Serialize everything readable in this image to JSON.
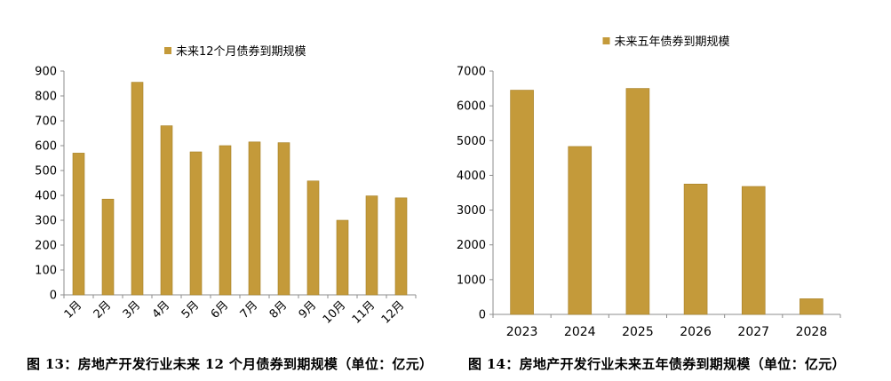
{
  "colors": {
    "bar": "#c49a3a",
    "bar_stroke": "#a67f24",
    "axis": "#8c8c8c"
  },
  "chart_data": [
    {
      "type": "bar",
      "legend": "未来12个月债券到期规模",
      "legend_position": "top",
      "categories": [
        "1月",
        "2月",
        "3月",
        "4月",
        "5月",
        "6月",
        "7月",
        "8月",
        "9月",
        "10月",
        "11月",
        "12月"
      ],
      "values": [
        570,
        385,
        855,
        680,
        575,
        600,
        615,
        612,
        458,
        300,
        398,
        390
      ],
      "ylim": [
        0,
        900
      ],
      "yticks": [
        "0",
        "100",
        "200",
        "300",
        "400",
        "500",
        "600",
        "700",
        "800",
        "900"
      ],
      "grid": false,
      "xlabel_rotation": "-45deg",
      "caption": "图 13：房地产开发行业未来 12 个月债券到期规模（单位：亿元）"
    },
    {
      "type": "bar",
      "legend": "未来五年债券到期规模",
      "legend_position": "top",
      "categories": [
        "2023",
        "2024",
        "2025",
        "2026",
        "2027",
        "2028"
      ],
      "values": [
        6450,
        4830,
        6500,
        3750,
        3680,
        450
      ],
      "ylim": [
        0,
        7000
      ],
      "yticks": [
        "0",
        "1000",
        "2000",
        "3000",
        "4000",
        "5000",
        "6000",
        "7000"
      ],
      "grid": false,
      "caption": "图 14：房地产开发行业未来五年债券到期规模（单位：亿元）"
    }
  ]
}
